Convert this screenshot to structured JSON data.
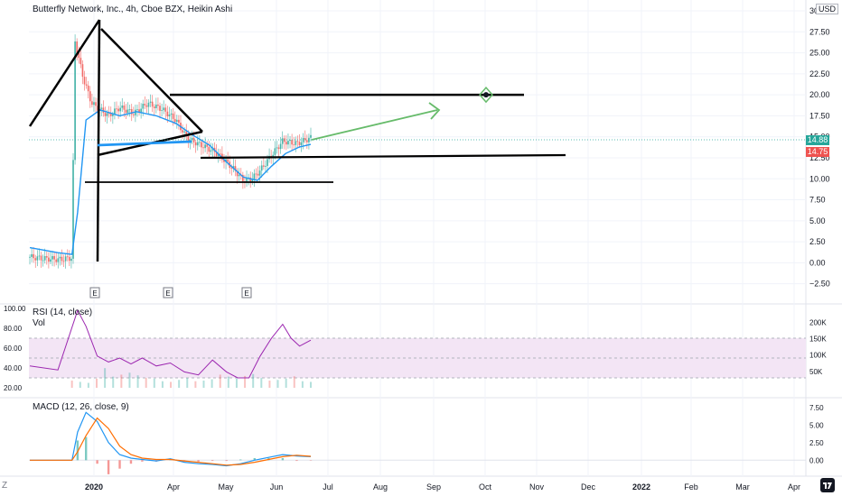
{
  "header": {
    "title": "Butterfly Network, Inc., 4h, Cboe BZX, Heikin Ashi",
    "currency": "USD"
  },
  "price_tags": {
    "last": "14.88",
    "prev": "14.75"
  },
  "timezone_label": "Z",
  "earnings_marker": "E",
  "rsi_pane": {
    "title": "RSI (14, close)",
    "vol_title": "Vol"
  },
  "macd_pane": {
    "title": "MACD (12, 26, close, 9)"
  },
  "colors": {
    "up": "#26a69a",
    "down": "#ef5350",
    "ma": "#2196f3",
    "rsi": "#9c27b0",
    "rsi_band": "#f3e5f5",
    "macd": "#2196f3",
    "signal": "#ff6d00",
    "arrow": "#66bb6a",
    "grid": "#f0f3fa",
    "axis_text": "#131722"
  },
  "chart_data": [
    {
      "type": "candlestick",
      "title": "Butterfly Network, Inc., 4h, Cboe BZX, Heikin Ashi",
      "x_ticks": [
        "2020",
        "Apr",
        "May",
        "Jun",
        "Jul",
        "Aug",
        "Sep",
        "Oct",
        "Nov",
        "Dec",
        "2022",
        "Feb",
        "Mar",
        "Apr"
      ],
      "y_ticks": [
        "30.00",
        "27.50",
        "25.00",
        "22.50",
        "20.00",
        "17.50",
        "15.00",
        "12.50",
        "10.00",
        "7.50",
        "5.00",
        "2.50",
        "0.00",
        "−2.50"
      ],
      "ylim": [
        -3.5,
        30
      ],
      "last_price": 14.88,
      "previous_price": 14.75,
      "price_path": [
        [
          0,
          0.7
        ],
        [
          0.05,
          0.5
        ],
        [
          0.11,
          0.4
        ],
        [
          0.15,
          0.6
        ],
        [
          0.16,
          26.5
        ],
        [
          0.19,
          22.0
        ],
        [
          0.22,
          19.0
        ],
        [
          0.28,
          17.5
        ],
        [
          0.32,
          18.5
        ],
        [
          0.37,
          17.8
        ],
        [
          0.42,
          19.0
        ],
        [
          0.47,
          18.3
        ],
        [
          0.52,
          17.0
        ],
        [
          0.56,
          14.8
        ],
        [
          0.61,
          14.0
        ],
        [
          0.66,
          13.2
        ],
        [
          0.7,
          12.0
        ],
        [
          0.73,
          11.0
        ],
        [
          0.76,
          9.8
        ],
        [
          0.79,
          10.0
        ],
        [
          0.82,
          11.0
        ],
        [
          0.86,
          12.8
        ],
        [
          0.9,
          14.5
        ],
        [
          0.95,
          14.2
        ],
        [
          1.0,
          14.88
        ]
      ],
      "moving_average": [
        [
          0,
          1.8
        ],
        [
          0.1,
          1.2
        ],
        [
          0.15,
          1.0
        ],
        [
          0.17,
          6.0
        ],
        [
          0.2,
          17.0
        ],
        [
          0.25,
          18.2
        ],
        [
          0.32,
          17.5
        ],
        [
          0.38,
          18.0
        ],
        [
          0.45,
          17.5
        ],
        [
          0.52,
          16.6
        ],
        [
          0.58,
          15.2
        ],
        [
          0.64,
          14.0
        ],
        [
          0.7,
          12.0
        ],
        [
          0.76,
          10.2
        ],
        [
          0.81,
          9.8
        ],
        [
          0.86,
          11.5
        ],
        [
          0.91,
          13.0
        ],
        [
          0.96,
          13.8
        ],
        [
          1.0,
          14.1
        ]
      ],
      "drawings": {
        "horizontal_levels": [
          20.0,
          13.0,
          10.0
        ],
        "target_price": 20.0,
        "projection": {
          "from": 14.9,
          "to": 18.0
        }
      },
      "earnings_events": 3
    },
    {
      "type": "line",
      "title": "RSI (14, close)",
      "y_ticks": [
        "100.00",
        "80.00",
        "60.00",
        "40.00",
        "20.00"
      ],
      "ylim": [
        20,
        100
      ],
      "band": [
        30,
        70
      ],
      "x": [
        0,
        0.1,
        0.17,
        0.2,
        0.24,
        0.28,
        0.32,
        0.36,
        0.4,
        0.45,
        0.5,
        0.55,
        0.6,
        0.65,
        0.7,
        0.74,
        0.78,
        0.82,
        0.86,
        0.9,
        0.93,
        0.96,
        1.0
      ],
      "values": [
        42,
        38,
        98,
        82,
        52,
        46,
        50,
        44,
        50,
        42,
        45,
        36,
        33,
        48,
        36,
        30,
        30,
        52,
        70,
        84,
        70,
        62,
        68
      ]
    },
    {
      "type": "bar",
      "title": "Vol",
      "y_ticks": [
        "200K",
        "150K",
        "100K",
        "50K"
      ],
      "ylim": [
        0,
        220
      ],
      "values_k": [
        22,
        18,
        15,
        28,
        60,
        34,
        40,
        46,
        38,
        30,
        28,
        20,
        18,
        24,
        30,
        20,
        22,
        26,
        40,
        34,
        28,
        36,
        42,
        30,
        22,
        24,
        28,
        35,
        20,
        18
      ]
    },
    {
      "type": "line",
      "title": "MACD (12, 26, close, 9)",
      "y_ticks": [
        "7.50",
        "5.00",
        "2.50",
        "0.00"
      ],
      "ylim": [
        -1.5,
        8.5
      ],
      "x": [
        0,
        0.15,
        0.17,
        0.2,
        0.24,
        0.28,
        0.32,
        0.36,
        0.4,
        0.45,
        0.5,
        0.55,
        0.6,
        0.65,
        0.7,
        0.75,
        0.8,
        0.85,
        0.9,
        0.95,
        1.0
      ],
      "series": [
        {
          "name": "MACD",
          "values": [
            0,
            0,
            4.0,
            6.8,
            5.5,
            2.5,
            0.8,
            0.3,
            0.1,
            -0.1,
            0.2,
            -0.3,
            -0.5,
            -0.6,
            -0.8,
            -0.5,
            0,
            0.4,
            0.8,
            0.6,
            0.5
          ]
        },
        {
          "name": "Signal",
          "values": [
            0,
            0,
            1.2,
            3.5,
            6.0,
            4.5,
            2.0,
            0.8,
            0.3,
            0.1,
            0.1,
            -0.1,
            -0.3,
            -0.5,
            -0.7,
            -0.6,
            -0.3,
            0.1,
            0.5,
            0.7,
            0.55
          ]
        }
      ]
    }
  ]
}
